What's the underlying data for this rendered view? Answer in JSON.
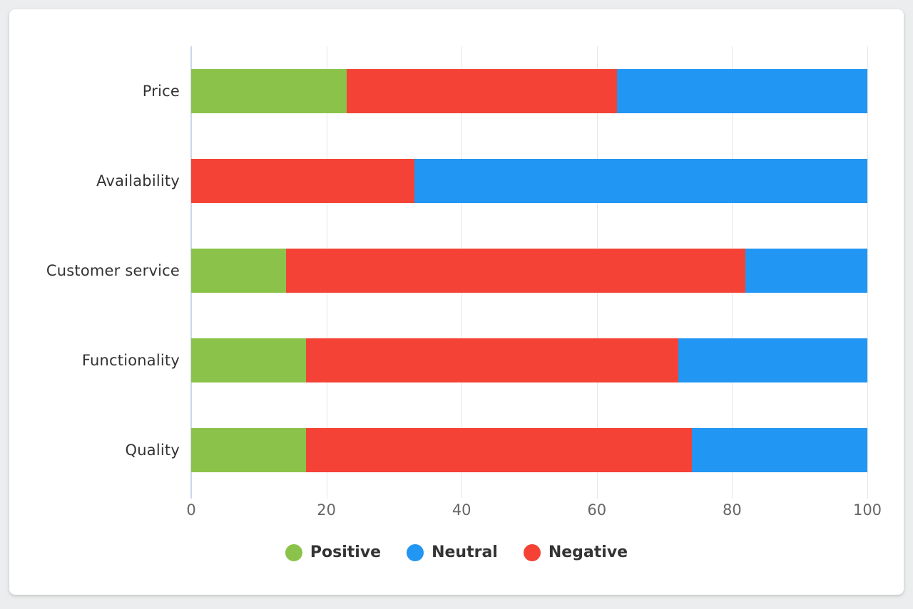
{
  "chart_data": {
    "type": "bar",
    "orientation": "horizontal",
    "stacked": true,
    "title": "",
    "xlabel": "",
    "ylabel": "",
    "xlim": [
      0,
      100
    ],
    "x_ticks": [
      "0",
      "20",
      "40",
      "60",
      "80",
      "100"
    ],
    "grid": true,
    "categories": [
      "Price",
      "Availability",
      "Customer service",
      "Functionality",
      "Quality"
    ],
    "series": [
      {
        "name": "Positive",
        "color": "#8BC34A",
        "values": [
          23,
          0,
          14,
          17,
          17
        ]
      },
      {
        "name": "Neutral",
        "color": "#2196F3",
        "values": [
          37,
          67,
          18,
          28,
          26
        ]
      },
      {
        "name": "Negative",
        "color": "#F44336",
        "values": [
          40,
          33,
          68,
          55,
          57
        ]
      }
    ],
    "stack_order": [
      "Positive",
      "Negative",
      "Neutral"
    ],
    "legend": {
      "position": "bottom",
      "items": [
        "Positive",
        "Neutral",
        "Negative"
      ]
    },
    "axis_colors": {
      "y_axis_line": "#ccd6eb",
      "gridline": "#e6e6e6",
      "tick_label_color": "#666666",
      "category_label_color": "#333333",
      "legend_text_color": "#333333"
    }
  }
}
